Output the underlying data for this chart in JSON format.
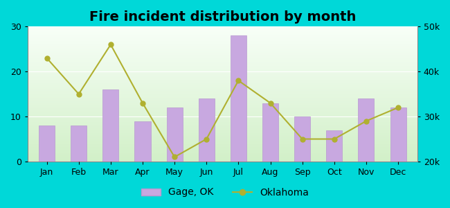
{
  "title": "Fire incident distribution by month",
  "months": [
    "Jan",
    "Feb",
    "Mar",
    "Apr",
    "May",
    "Jun",
    "Jul",
    "Aug",
    "Sep",
    "Oct",
    "Nov",
    "Dec"
  ],
  "gage_ok": [
    8,
    8,
    16,
    9,
    12,
    14,
    28,
    13,
    10,
    7,
    14,
    12
  ],
  "oklahoma_right": [
    43000,
    35000,
    46000,
    33000,
    21000,
    25000,
    38000,
    33000,
    25000,
    25000,
    29000,
    32000
  ],
  "bar_color": "#c8a8e0",
  "bar_edge_color": "#b898d0",
  "line_color": "#b0b030",
  "line_marker": "o",
  "ylim_left": [
    0,
    30
  ],
  "ylim_right": [
    20000,
    50000
  ],
  "yticks_left": [
    0,
    10,
    20,
    30
  ],
  "yticks_right": [
    20000,
    30000,
    40000,
    50000
  ],
  "outer_background": "#00d8d8",
  "plot_bg_top": "#f8fff8",
  "plot_bg_bottom": "#d8f0d0",
  "title_fontsize": 14,
  "axis_fontsize": 9,
  "legend_fontsize": 10
}
